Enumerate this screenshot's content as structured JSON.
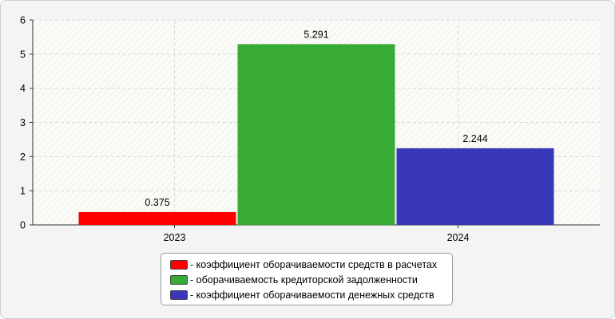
{
  "chart_data": {
    "type": "bar",
    "categories": [
      "2023",
      "2024"
    ],
    "series": [
      {
        "name": "коэффициент оборачиваемости средств в расчетах",
        "category": "2023",
        "value": 0.375,
        "label": "0.375",
        "color": "#ff0000"
      },
      {
        "name": "оборачиваемость кредиторской задолженности",
        "category": "2023",
        "value": 5.291,
        "label": "5.291",
        "color": "#38ab35"
      },
      {
        "name": "коэффициент оборачиваемости денежных средств",
        "category": "2024",
        "value": 2.244,
        "label": "2.244",
        "color": "#3737b7"
      }
    ],
    "title": "",
    "xlabel": "",
    "ylabel": "",
    "ylim": [
      0,
      6
    ],
    "yticks": [
      "0",
      "1",
      "2",
      "3",
      "4",
      "5",
      "6"
    ],
    "grid": true,
    "legend_position": "bottom"
  },
  "legend": {
    "items": [
      {
        "label": "- коэффициент оборачиваемости средств в расчетах",
        "color": "#ff0000"
      },
      {
        "label": "- оборачиваемость кредиторской задолженности",
        "color": "#38ab35"
      },
      {
        "label": "- коэффициент оборачиваемости денежных средств",
        "color": "#3737b7"
      }
    ]
  }
}
